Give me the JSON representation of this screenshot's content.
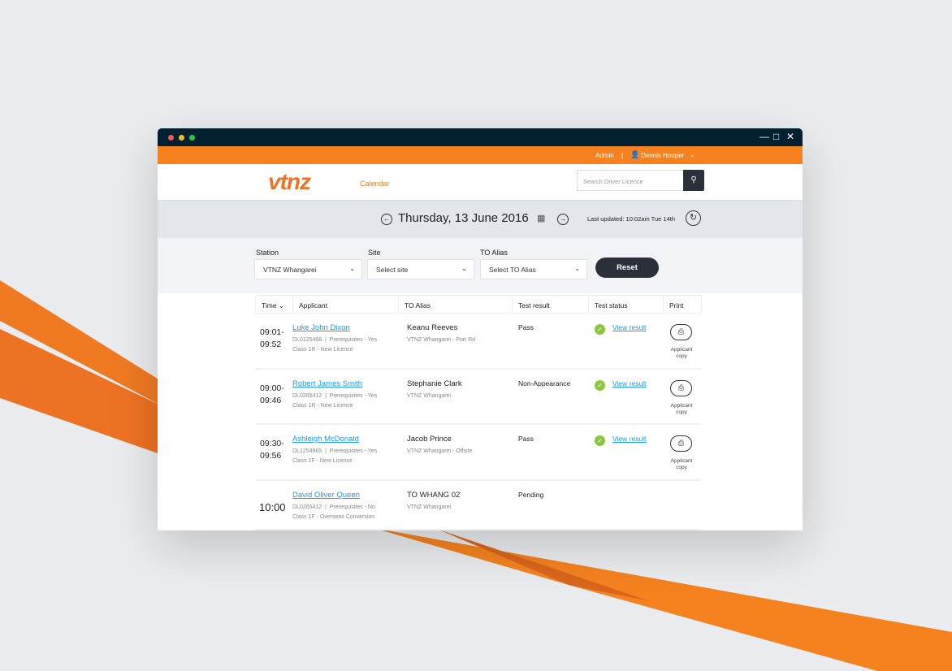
{
  "window": {
    "controls": [
      "minimize",
      "maximize",
      "close"
    ]
  },
  "topbar": {
    "role": "Admin",
    "separator": "|",
    "user": "Dennis Hooper"
  },
  "header": {
    "logo": "vtnz",
    "nav": "Calendar",
    "search_placeholder": "Search Driver Licence"
  },
  "datebar": {
    "date": "Thursday, 13 June 2016",
    "last_updated": "Last updated: 10:02am Tue 14th"
  },
  "filters": {
    "station_label": "Station",
    "station_value": "VTNZ Whangarei",
    "site_label": "Site",
    "site_value": "Select site",
    "alias_label": "TO Alias",
    "alias_value": "Select TO Alias",
    "reset": "Reset"
  },
  "table": {
    "headers": [
      "Time",
      "Applicant",
      "TO Alias",
      "Test result",
      "Test status",
      "Print"
    ],
    "rows": [
      {
        "time1": "09:01-",
        "time2": "09:52",
        "name": "Luke John Dixon",
        "licence": "DL0125468  |  Prerequisites - Yes",
        "class": "Class 1R - New Licence",
        "alias": "Keanu Reeves",
        "alias_site": "VTNZ Whangarei - Port Rd",
        "result": "Pass",
        "status": "View result",
        "print1": "Applicant",
        "print2": "copy"
      },
      {
        "time1": "09:00-",
        "time2": "09:46",
        "name": "Robert James Smith",
        "licence": "DL0265412  |  Prerequisites - Yes",
        "class": "Class 1R - New Licence",
        "alias": "Stephanie Clark",
        "alias_site": "VTNZ Whangarei",
        "result": "Non-Appearance",
        "status": "View result",
        "print1": "Applicant",
        "print2": "copy"
      },
      {
        "time1": "09:30-",
        "time2": "09:56",
        "name": "Ashleigh McDonald",
        "licence": "DL1254965  |  Prerequisites - Yes",
        "class": "Class 1F - New Licence",
        "alias": "Jacob Prince",
        "alias_site": "VTNZ Whangarei - Offsite",
        "result": "Pass",
        "status": "View result",
        "print1": "Applicant",
        "print2": "copy"
      },
      {
        "time1": "10:00",
        "time2": "",
        "name": "David Oliver Queen",
        "licence": "DL0265412  |  Prerequisites - No",
        "class": "Class 1F - Overseas Conversion",
        "alias": "TO WHANG 02",
        "alias_site": "VTNZ Whangarei",
        "result": "Pending",
        "status": "",
        "print1": "",
        "print2": ""
      }
    ]
  },
  "colors": {
    "brand": "#f5821f",
    "titlebar": "#02202f",
    "link": "#1a9af0",
    "success": "#8cc63f",
    "dark_button": "#2b2f3a"
  }
}
